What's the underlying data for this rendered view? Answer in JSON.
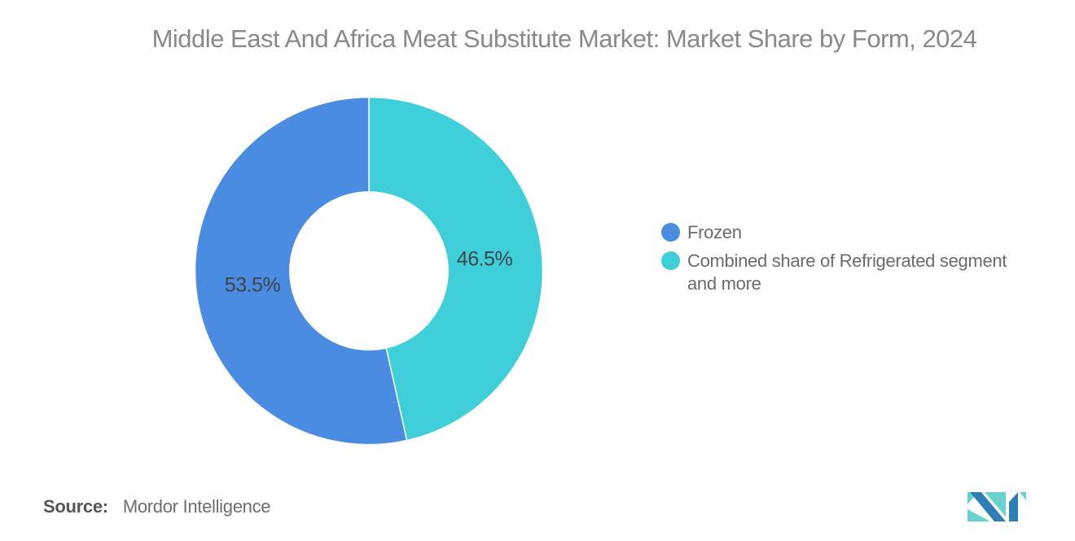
{
  "header": {
    "title": "Middle East And Africa Meat Substitute Market: Market Share by Form, 2024"
  },
  "chart_data": {
    "type": "pie",
    "subtype": "donut",
    "title": "Middle East And Africa Meat Substitute Market: Market Share by Form, 2024",
    "start_angle": "top",
    "direction": "clockwise",
    "inner_radius_ratio": 0.455,
    "legend_position": "right",
    "segments": [
      {
        "label": "Frozen",
        "value": 53.5,
        "display": "53.5%",
        "color": "#4A8CE2"
      },
      {
        "label": "Combined share of Refrigerated segment and more",
        "value": 46.5,
        "display": "46.5%",
        "color": "#3FCFDB"
      }
    ]
  },
  "footer": {
    "source_label": "Source:",
    "source_value": "Mordor Intelligence",
    "logo": {
      "name": "mordor-intelligence-logo",
      "blue": "#2E7FB5",
      "teal": "#66D2CD"
    }
  }
}
